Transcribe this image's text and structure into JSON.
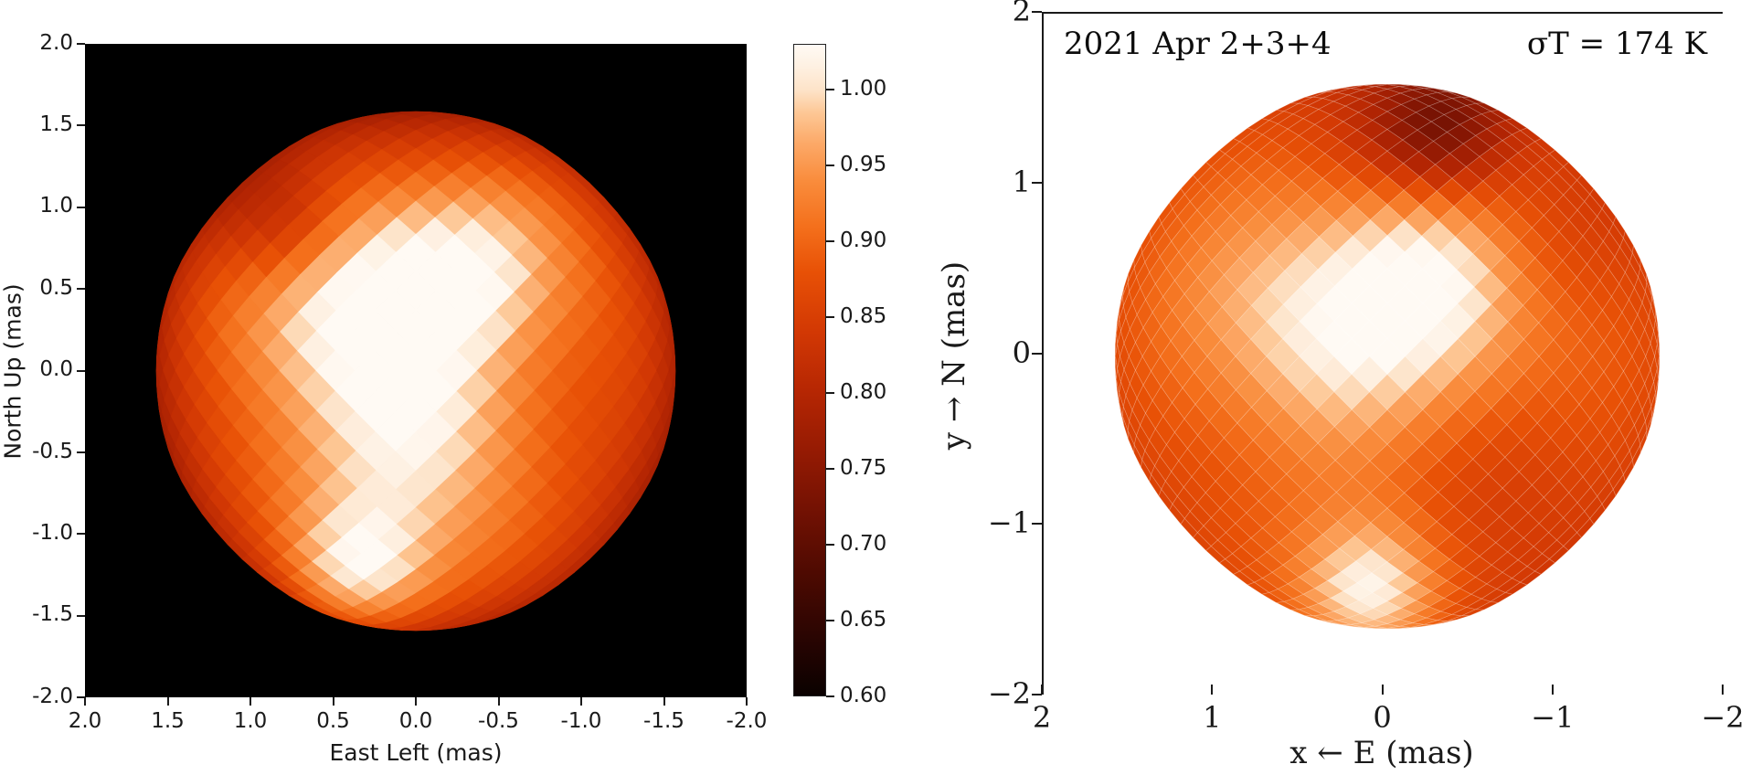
{
  "page": {
    "background": "#ffffff",
    "text_color": "#1a1a1a"
  },
  "chart_data": [
    {
      "type": "heatmap",
      "panel": "left",
      "description": "Stellar surface normalized-intensity mosaic on black background",
      "xlabel": "East Left (mas)",
      "ylabel": "North Up (mas)",
      "xlim": [
        2.0,
        -2.0
      ],
      "ylim": [
        -2.0,
        2.0
      ],
      "grid": false,
      "background": "#000000",
      "xticks": {
        "values": [
          2.0,
          1.5,
          1.0,
          0.5,
          0.0,
          -0.5,
          -1.0,
          -1.5,
          -2.0
        ],
        "labels": [
          "2.0",
          "1.5",
          "1.0",
          "0.5",
          "0.0",
          "-0.5",
          "-1.0",
          "-1.5",
          "-2.0"
        ]
      },
      "yticks": {
        "values": [
          2.0,
          1.5,
          1.0,
          0.5,
          0.0,
          -0.5,
          -1.0,
          -1.5,
          -2.0
        ],
        "labels": [
          "2.0",
          "1.5",
          "1.0",
          "0.5",
          "0.0",
          "-0.5",
          "-1.0",
          "-1.5",
          "-2.0"
        ]
      },
      "star": {
        "center_mas": [
          0.0,
          0.0
        ],
        "radius_mas": 1.57,
        "cell_mas": 0.25,
        "base_intensity": 0.955,
        "limb_quad": 0.05,
        "limb_edge": 0.1,
        "mesh_line_color": "none",
        "features": [
          {
            "x": 0.45,
            "y": 0.55,
            "sigma": 0.4,
            "amp": 0.085
          },
          {
            "x": -0.35,
            "y": 0.62,
            "sigma": 0.34,
            "amp": 0.08
          },
          {
            "x": 0.05,
            "y": 0.08,
            "sigma": 0.5,
            "amp": 0.075
          },
          {
            "x": 0.02,
            "y": -0.5,
            "sigma": 0.38,
            "amp": 0.045
          },
          {
            "x": 0.75,
            "y": 0.85,
            "sigma": 0.3,
            "amp": -0.11
          },
          {
            "x": 0.35,
            "y": -1.22,
            "sigma": 0.28,
            "amp": 0.125
          },
          {
            "x": -0.9,
            "y": -0.45,
            "sigma": 0.5,
            "amp": -0.045
          },
          {
            "x": 1.1,
            "y": -0.3,
            "sigma": 0.5,
            "amp": -0.035
          },
          {
            "x": -0.75,
            "y": 0.15,
            "sigma": 0.4,
            "amp": -0.03
          },
          {
            "x": 0.1,
            "y": 1.3,
            "sigma": 0.4,
            "amp": -0.04
          }
        ]
      },
      "colorbar": {
        "vmin": 0.6,
        "vmax": 1.03,
        "tick_values": [
          1.0,
          0.95,
          0.9,
          0.85,
          0.8,
          0.75,
          0.7,
          0.65,
          0.6
        ],
        "tick_labels": [
          "1.00",
          "0.95",
          "0.90",
          "0.85",
          "0.80",
          "0.75",
          "0.70",
          "0.65",
          "0.60"
        ],
        "stops": [
          [
            0.6,
            "#0a0100"
          ],
          [
            0.64,
            "#2b0502"
          ],
          [
            0.68,
            "#4d0a01"
          ],
          [
            0.72,
            "#711103"
          ],
          [
            0.76,
            "#941a03"
          ],
          [
            0.8,
            "#b52603"
          ],
          [
            0.84,
            "#d23804"
          ],
          [
            0.88,
            "#e85106"
          ],
          [
            0.91,
            "#f4701c"
          ],
          [
            0.94,
            "#f98c3c"
          ],
          [
            0.965,
            "#fca968"
          ],
          [
            0.985,
            "#fdc795"
          ],
          [
            1.0,
            "#fde3c8"
          ],
          [
            1.015,
            "#fef0e1"
          ],
          [
            1.03,
            "#fffaf4"
          ]
        ]
      }
    },
    {
      "type": "heatmap",
      "panel": "right",
      "description": "Rendered stellar sphere temperature map on white background",
      "xlabel": "x ← E (mas)",
      "ylabel": "y → N (mas)",
      "xlim": [
        2,
        -2
      ],
      "ylim": [
        -2,
        2
      ],
      "grid": false,
      "background": "#ffffff",
      "annotations": {
        "date": "2021 Apr 2+3+4",
        "sigma_t": "σT = 174 K"
      },
      "xticks": {
        "values": [
          2,
          1,
          0,
          -1,
          -2
        ],
        "labels": [
          "2",
          "1",
          "0",
          "−1",
          "−2"
        ]
      },
      "yticks": {
        "values": [
          2,
          1,
          0,
          -1,
          -2
        ],
        "labels": [
          "2",
          "1",
          "0",
          "−1",
          "−2"
        ]
      },
      "star": {
        "center_mas": [
          0.0,
          0.0
        ],
        "radius_mas": 1.6,
        "cell_mas": 0.21,
        "base_intensity": 0.935,
        "limb_quad": 0.03,
        "limb_edge": 0.035,
        "mesh_line_color": "rgba(255,255,255,0.22)",
        "features": [
          {
            "x": -0.33,
            "y": 1.32,
            "sigma": 0.3,
            "amp": -0.15
          },
          {
            "x": 0.12,
            "y": 1.28,
            "sigma": 0.38,
            "amp": -0.055
          },
          {
            "x": -0.95,
            "y": 0.7,
            "sigma": 0.4,
            "amp": -0.06
          },
          {
            "x": -0.25,
            "y": 0.45,
            "sigma": 0.42,
            "amp": 0.12
          },
          {
            "x": 0.3,
            "y": 0.0,
            "sigma": 0.45,
            "amp": 0.07
          },
          {
            "x": -0.6,
            "y": -0.75,
            "sigma": 0.55,
            "amp": -0.07
          },
          {
            "x": 0.95,
            "y": -0.6,
            "sigma": 0.45,
            "amp": -0.035
          },
          {
            "x": 0.1,
            "y": -1.38,
            "sigma": 0.28,
            "amp": 0.14
          },
          {
            "x": 0.8,
            "y": 0.4,
            "sigma": 0.35,
            "amp": 0.025
          }
        ]
      }
    }
  ]
}
